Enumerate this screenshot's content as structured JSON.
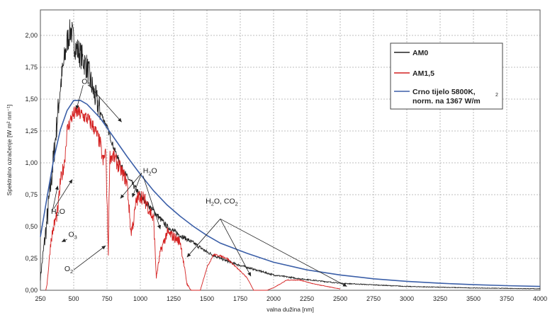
{
  "chart_data": {
    "type": "line",
    "xlabel": "valna dužina [nm]",
    "ylabel": "Spektralno ozračenje [W m² nm⁻¹]",
    "xlim": [
      250,
      4000
    ],
    "ylim": [
      0,
      2.2
    ],
    "x_ticks": [
      "250",
      "500",
      "750",
      "1000",
      "1250",
      "1500",
      "1750",
      "2000",
      "2250",
      "2500",
      "2750",
      "3000",
      "3250",
      "3500",
      "3750",
      "4000"
    ],
    "y_ticks": [
      "0,00",
      "0,25",
      "0,50",
      "0,75",
      "1,00",
      "1,25",
      "1,50",
      "1,75",
      "2,00"
    ],
    "grid": true,
    "legend_placement": "top-right",
    "legend": [
      {
        "label": "AM0",
        "color": "#222222"
      },
      {
        "label": "AM1,5",
        "color": "#d42020"
      },
      {
        "label": "Crno tijelo 5800K,",
        "label2": "norm. na 1367 W/m",
        "sup": "2",
        "color": "#3b5fa8"
      }
    ],
    "series": [
      {
        "name": "AM0",
        "color": "#222222",
        "x": [
          250,
          300,
          350,
          400,
          450,
          480,
          500,
          520,
          550,
          600,
          650,
          700,
          750,
          800,
          850,
          900,
          950,
          1000,
          1100,
          1200,
          1300,
          1400,
          1500,
          1600,
          1700,
          1800,
          2000,
          2200,
          2500,
          3000,
          3500,
          4000
        ],
        "y": [
          0.1,
          0.55,
          1.05,
          1.6,
          1.95,
          2.05,
          1.95,
          1.9,
          1.85,
          1.75,
          1.55,
          1.4,
          1.28,
          1.12,
          0.99,
          0.89,
          0.82,
          0.74,
          0.62,
          0.5,
          0.43,
          0.37,
          0.3,
          0.25,
          0.21,
          0.18,
          0.12,
          0.09,
          0.055,
          0.03,
          0.018,
          0.012
        ]
      },
      {
        "name": "AM1,5",
        "color": "#d42020",
        "x": [
          290,
          300,
          330,
          350,
          380,
          400,
          430,
          450,
          480,
          500,
          530,
          550,
          600,
          650,
          700,
          720,
          740,
          760,
          770,
          800,
          850,
          900,
          930,
          950,
          970,
          1000,
          1050,
          1100,
          1120,
          1150,
          1200,
          1250,
          1300,
          1350,
          1380,
          1400,
          1450,
          1500,
          1550,
          1600,
          1650,
          1700,
          1750,
          1800,
          1850,
          1900,
          1950,
          2000,
          2100,
          2200,
          2300,
          2400,
          2500
        ],
        "y": [
          0,
          0.05,
          0.4,
          0.5,
          0.62,
          0.85,
          1.0,
          1.25,
          1.35,
          1.38,
          1.4,
          1.38,
          1.35,
          1.28,
          1.15,
          1.0,
          1.1,
          0.3,
          1.05,
          1.05,
          0.95,
          0.85,
          0.45,
          0.55,
          0.7,
          0.75,
          0.68,
          0.55,
          0.1,
          0.3,
          0.45,
          0.42,
          0.38,
          0.05,
          0,
          0,
          0,
          0.18,
          0.28,
          0.27,
          0.25,
          0.2,
          0.15,
          0.1,
          0,
          0,
          0,
          0.02,
          0.08,
          0.08,
          0.05,
          0.03,
          0.01
        ]
      },
      {
        "name": "Crno tijelo 5800K, norm. na 1367 W/m2",
        "color": "#3b5fa8",
        "x": [
          250,
          300,
          350,
          400,
          450,
          500,
          550,
          600,
          700,
          800,
          900,
          1000,
          1100,
          1200,
          1300,
          1400,
          1500,
          1600,
          1800,
          2000,
          2250,
          2500,
          2750,
          3000,
          3250,
          3500,
          3750,
          4000
        ],
        "y": [
          0.42,
          0.73,
          1.03,
          1.26,
          1.41,
          1.49,
          1.49,
          1.46,
          1.35,
          1.2,
          1.05,
          0.91,
          0.78,
          0.67,
          0.58,
          0.5,
          0.43,
          0.37,
          0.29,
          0.22,
          0.16,
          0.12,
          0.09,
          0.07,
          0.055,
          0.044,
          0.036,
          0.03
        ]
      }
    ],
    "annotations": [
      {
        "text": "O",
        "sub": "3",
        "at": [
          560,
          1.62
        ]
      },
      {
        "text": "H",
        "sub": "2",
        "tail": "O",
        "at": [
          1020,
          0.92
        ]
      },
      {
        "text": "H",
        "sub": "2",
        "tail": "O",
        "at": [
          330,
          0.6
        ]
      },
      {
        "text": "H",
        "sub": "2",
        "tail": "O, CO",
        "sub2": "2",
        "at": [
          1490,
          0.68
        ]
      },
      {
        "text": "O",
        "sub": "3",
        "at": [
          460,
          0.42
        ]
      },
      {
        "text": "O",
        "sub": "2",
        "at": [
          430,
          0.15
        ]
      }
    ]
  }
}
